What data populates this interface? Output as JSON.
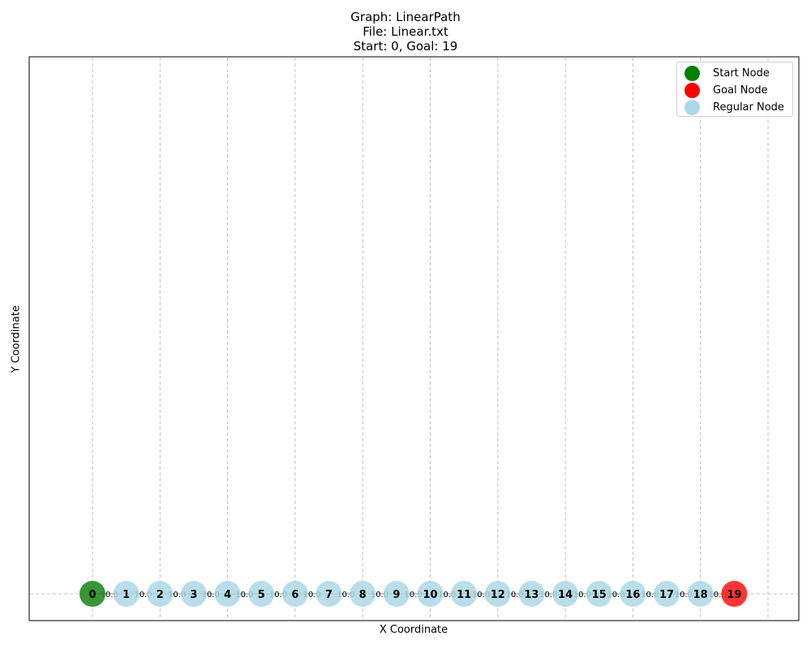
{
  "title": {
    "line1": "Graph: LinearPath",
    "line2": "File: Linear.txt",
    "line3": "Start: 0, Goal: 19"
  },
  "axes": {
    "xlabel": "X Coordinate",
    "ylabel": "Y Coordinate",
    "grid": true
  },
  "legend": {
    "placement": "top-right",
    "items": [
      {
        "label": "Start Node",
        "color": "#008000"
      },
      {
        "label": "Goal Node",
        "color": "#ff0000"
      },
      {
        "label": "Regular Node",
        "color": "#add8e6"
      }
    ]
  },
  "colors": {
    "start": "#228b22",
    "goal": "#ff2a2a",
    "regular": "#add8e6",
    "edge_label": "#000000"
  },
  "graph": {
    "start": 0,
    "goal": 19,
    "nodes": [
      "0",
      "1",
      "2",
      "3",
      "4",
      "5",
      "6",
      "7",
      "8",
      "9",
      "10",
      "11",
      "12",
      "13",
      "14",
      "15",
      "16",
      "17",
      "18",
      "19"
    ],
    "edge_weight_label": "10.0"
  }
}
